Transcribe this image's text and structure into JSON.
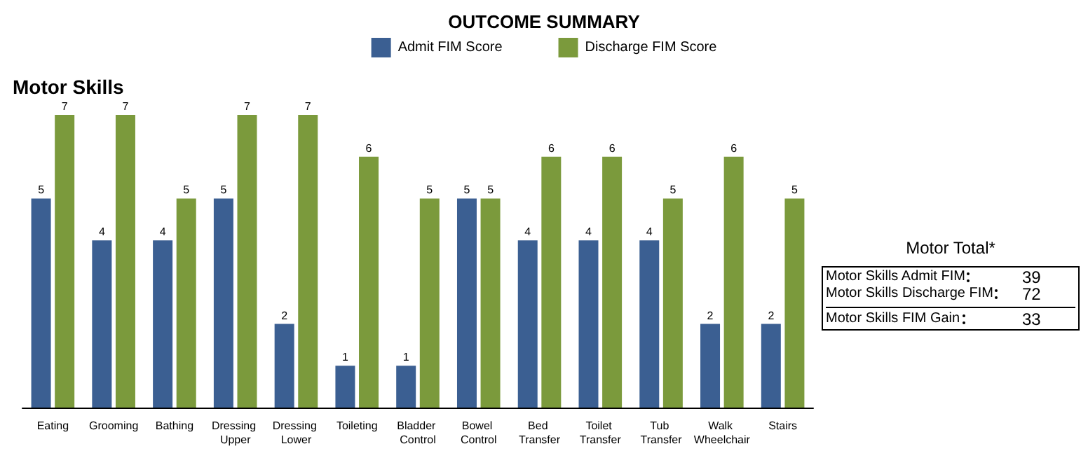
{
  "chart_data": [
    {
      "type": "bar",
      "title": "OUTCOME SUMMARY",
      "subtitle": "Motor Skills",
      "categories": [
        "Eating",
        "Grooming",
        "Bathing",
        "Dressing Upper",
        "Dressing Lower",
        "Toileting",
        "Bladder Control",
        "Bowel Control",
        "Bed Transfer",
        "Toilet Transfer",
        "Tub Transfer",
        "Walk Wheelchair",
        "Stairs"
      ],
      "series": [
        {
          "name": "Admit FIM Score",
          "color": "#3b5f92",
          "values": [
            5,
            4,
            4,
            5,
            2,
            1,
            1,
            5,
            4,
            4,
            4,
            2,
            2
          ]
        },
        {
          "name": "Discharge FIM Score",
          "color": "#7b9a3c",
          "values": [
            7,
            7,
            5,
            7,
            7,
            6,
            5,
            5,
            6,
            6,
            5,
            6,
            5
          ]
        }
      ],
      "data_labels": true,
      "legend": "top",
      "tick_labels": "x"
    },
    {
      "type": "other",
      "title": "Motor Total*",
      "categories": [
        "Motor Skills Admit FIM",
        "Motor Skills Discharge FIM",
        "Motor Skills FIM Gain"
      ],
      "values": [
        39,
        72,
        33
      ],
      "data_labels": true
    }
  ]
}
